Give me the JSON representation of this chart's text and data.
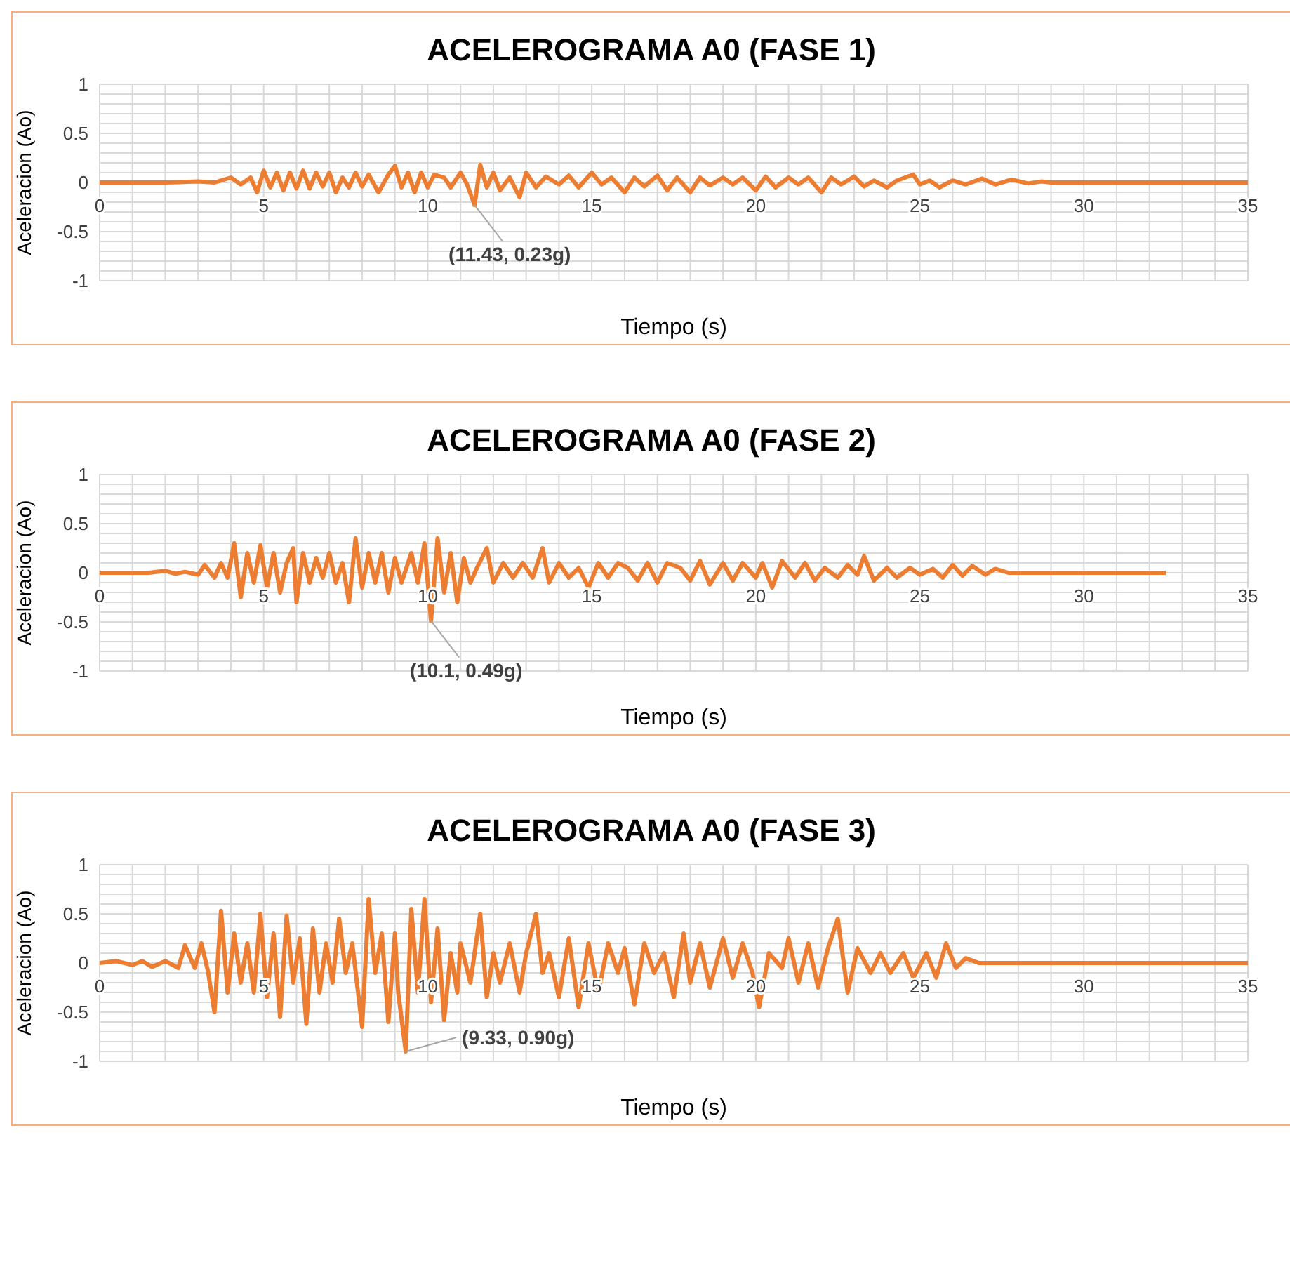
{
  "chart_data": [
    {
      "type": "line",
      "title": "ACELEROGRAMA A0 (FASE 1)",
      "xlabel": "Tiempo (s)",
      "ylabel": "Aceleracion (Ao)",
      "xlim": [
        0,
        35
      ],
      "ylim": [
        -1,
        1
      ],
      "xticks": [
        0,
        {
          "value": 1,
          "label": null
        },
        {
          "value": 2,
          "label": null
        },
        {
          "value": 3,
          "label": null
        },
        {
          "value": 4,
          "label": null
        },
        5,
        {
          "value": 6,
          "label": null
        },
        {
          "value": 7,
          "label": null
        },
        {
          "value": 8,
          "label": null
        },
        {
          "value": 9,
          "label": null
        },
        10,
        {
          "value": 11,
          "label": null
        },
        {
          "value": 12,
          "label": null
        },
        {
          "value": 13,
          "label": null
        },
        {
          "value": 14,
          "label": null
        },
        15,
        {
          "value": 16,
          "label": null
        },
        {
          "value": 17,
          "label": null
        },
        {
          "value": 18,
          "label": null
        },
        {
          "value": 19,
          "label": null
        },
        20,
        {
          "value": 21,
          "label": null
        },
        {
          "value": 22,
          "label": null
        },
        {
          "value": 23,
          "label": null
        },
        {
          "value": 24,
          "label": null
        },
        25,
        {
          "value": 26,
          "label": null
        },
        {
          "value": 27,
          "label": null
        },
        {
          "value": 28,
          "label": null
        },
        {
          "value": 29,
          "label": null
        },
        30,
        {
          "value": 31,
          "label": null
        },
        {
          "value": 32,
          "label": null
        },
        {
          "value": 33,
          "label": null
        },
        {
          "value": 34,
          "label": null
        },
        35
      ],
      "yticks": [
        -1,
        {
          "value": -0.9,
          "label": null
        },
        {
          "value": -0.8,
          "label": null
        },
        {
          "value": -0.7,
          "label": null
        },
        {
          "value": -0.6,
          "label": null
        },
        -0.5,
        {
          "value": -0.4,
          "label": null
        },
        {
          "value": -0.3,
          "label": null
        },
        {
          "value": -0.2,
          "label": null
        },
        {
          "value": -0.1,
          "label": null
        },
        0,
        {
          "value": 0.1,
          "label": null
        },
        {
          "value": 0.2,
          "label": null
        },
        {
          "value": 0.3,
          "label": null
        },
        {
          "value": 0.4,
          "label": null
        },
        0.5,
        {
          "value": 0.6,
          "label": null
        },
        {
          "value": 0.7,
          "label": null
        },
        {
          "value": 0.8,
          "label": null
        },
        {
          "value": 0.9,
          "label": null
        },
        1
      ],
      "grid": true,
      "marker": "none",
      "line_style": "solid",
      "series": [
        {
          "color": "#ed7d31",
          "x": [
            0,
            2,
            3,
            3.5,
            4,
            4.3,
            4.6,
            4.8,
            5,
            5.2,
            5.4,
            5.6,
            5.8,
            6,
            6.2,
            6.4,
            6.6,
            6.8,
            7,
            7.2,
            7.4,
            7.6,
            7.8,
            8,
            8.2,
            8.5,
            8.8,
            9,
            9.2,
            9.4,
            9.6,
            9.8,
            10,
            10.2,
            10.5,
            10.7,
            11,
            11.2,
            11.43,
            11.6,
            11.8,
            12,
            12.2,
            12.5,
            12.8,
            13,
            13.3,
            13.6,
            14,
            14.3,
            14.6,
            15,
            15.3,
            15.6,
            16,
            16.3,
            16.6,
            17,
            17.3,
            17.6,
            18,
            18.3,
            18.6,
            19,
            19.3,
            19.6,
            20,
            20.3,
            20.6,
            21,
            21.3,
            21.6,
            22,
            22.3,
            22.6,
            23,
            23.3,
            23.6,
            24,
            24.3,
            24.8,
            25,
            25.3,
            25.6,
            26,
            26.4,
            26.9,
            27.3,
            27.8,
            28.3,
            28.7,
            29,
            35
          ],
          "values": [
            0,
            0,
            0.01,
            0,
            0.05,
            -0.02,
            0.05,
            -0.1,
            0.12,
            -0.05,
            0.1,
            -0.08,
            0.1,
            -0.06,
            0.12,
            -0.06,
            0.1,
            -0.04,
            0.1,
            -0.1,
            0.05,
            -0.05,
            0.1,
            -0.04,
            0.08,
            -0.1,
            0.08,
            0.17,
            -0.05,
            0.1,
            -0.1,
            0.1,
            -0.05,
            0.08,
            0.05,
            -0.05,
            0.1,
            -0.02,
            -0.23,
            0.18,
            -0.05,
            0.1,
            -0.08,
            0.05,
            -0.15,
            0.1,
            -0.05,
            0.06,
            -0.02,
            0.07,
            -0.05,
            0.1,
            -0.02,
            0.05,
            -0.1,
            0.05,
            -0.04,
            0.07,
            -0.08,
            0.05,
            -0.1,
            0.05,
            -0.03,
            0.05,
            -0.02,
            0.05,
            -0.08,
            0.06,
            -0.05,
            0.05,
            -0.02,
            0.05,
            -0.1,
            0.05,
            -0.02,
            0.06,
            -0.04,
            0.02,
            -0.05,
            0.02,
            0.08,
            -0.02,
            0.02,
            -0.05,
            0.02,
            -0.02,
            0.04,
            -0.02,
            0.03,
            -0.01,
            0.01,
            0,
            0
          ]
        }
      ],
      "annotations": [
        {
          "text": "(11.43, 0.23g)",
          "x": 11.43,
          "y": -0.23
        }
      ]
    },
    {
      "type": "line",
      "title": "ACELEROGRAMA A0 (FASE 2)",
      "xlabel": "Tiempo (s)",
      "ylabel": "Aceleracion (Ao)",
      "xlim": [
        0,
        35
      ],
      "ylim": [
        -1,
        1
      ],
      "xticks": [
        0,
        {
          "value": 1,
          "label": null
        },
        {
          "value": 2,
          "label": null
        },
        {
          "value": 3,
          "label": null
        },
        {
          "value": 4,
          "label": null
        },
        5,
        {
          "value": 6,
          "label": null
        },
        {
          "value": 7,
          "label": null
        },
        {
          "value": 8,
          "label": null
        },
        {
          "value": 9,
          "label": null
        },
        10,
        {
          "value": 11,
          "label": null
        },
        {
          "value": 12,
          "label": null
        },
        {
          "value": 13,
          "label": null
        },
        {
          "value": 14,
          "label": null
        },
        15,
        {
          "value": 16,
          "label": null
        },
        {
          "value": 17,
          "label": null
        },
        {
          "value": 18,
          "label": null
        },
        {
          "value": 19,
          "label": null
        },
        20,
        {
          "value": 21,
          "label": null
        },
        {
          "value": 22,
          "label": null
        },
        {
          "value": 23,
          "label": null
        },
        {
          "value": 24,
          "label": null
        },
        25,
        {
          "value": 26,
          "label": null
        },
        {
          "value": 27,
          "label": null
        },
        {
          "value": 28,
          "label": null
        },
        {
          "value": 29,
          "label": null
        },
        30,
        {
          "value": 31,
          "label": null
        },
        {
          "value": 32,
          "label": null
        },
        {
          "value": 33,
          "label": null
        },
        {
          "value": 34,
          "label": null
        },
        35
      ],
      "yticks": [
        -1,
        {
          "value": -0.9,
          "label": null
        },
        {
          "value": -0.8,
          "label": null
        },
        {
          "value": -0.7,
          "label": null
        },
        {
          "value": -0.6,
          "label": null
        },
        -0.5,
        {
          "value": -0.4,
          "label": null
        },
        {
          "value": -0.3,
          "label": null
        },
        {
          "value": -0.2,
          "label": null
        },
        {
          "value": -0.1,
          "label": null
        },
        0,
        {
          "value": 0.1,
          "label": null
        },
        {
          "value": 0.2,
          "label": null
        },
        {
          "value": 0.3,
          "label": null
        },
        {
          "value": 0.4,
          "label": null
        },
        0.5,
        {
          "value": 0.6,
          "label": null
        },
        {
          "value": 0.7,
          "label": null
        },
        {
          "value": 0.8,
          "label": null
        },
        {
          "value": 0.9,
          "label": null
        },
        1
      ],
      "grid": true,
      "marker": "none",
      "line_style": "solid",
      "series": [
        {
          "color": "#ed7d31",
          "x": [
            0,
            1.5,
            2,
            2.3,
            2.6,
            3,
            3.2,
            3.5,
            3.7,
            3.9,
            4.1,
            4.3,
            4.5,
            4.7,
            4.9,
            5.1,
            5.3,
            5.5,
            5.7,
            5.9,
            6,
            6.2,
            6.4,
            6.6,
            6.8,
            7,
            7.2,
            7.4,
            7.6,
            7.8,
            8,
            8.2,
            8.4,
            8.6,
            8.8,
            9,
            9.2,
            9.5,
            9.7,
            9.9,
            10.1,
            10.3,
            10.5,
            10.7,
            10.9,
            11.1,
            11.3,
            11.5,
            11.8,
            12,
            12.3,
            12.6,
            12.9,
            13.2,
            13.5,
            13.7,
            14,
            14.3,
            14.6,
            14.9,
            15.2,
            15.5,
            15.8,
            16.1,
            16.4,
            16.7,
            17,
            17.3,
            17.7,
            18,
            18.3,
            18.6,
            19,
            19.3,
            19.6,
            20,
            20.2,
            20.5,
            20.8,
            21.2,
            21.5,
            21.8,
            22.1,
            22.5,
            22.8,
            23.1,
            23.3,
            23.6,
            24,
            24.3,
            24.7,
            25,
            25.4,
            25.7,
            26,
            26.3,
            26.6,
            27,
            27.3,
            27.7,
            32.5
          ],
          "values": [
            0,
            0,
            0.02,
            -0.01,
            0.01,
            -0.02,
            0.08,
            -0.05,
            0.1,
            -0.05,
            0.3,
            -0.25,
            0.2,
            -0.1,
            0.28,
            -0.15,
            0.2,
            -0.2,
            0.1,
            0.25,
            -0.3,
            0.2,
            -0.1,
            0.15,
            -0.05,
            0.2,
            -0.1,
            0.1,
            -0.3,
            0.35,
            -0.15,
            0.2,
            -0.1,
            0.2,
            -0.2,
            0.15,
            -0.1,
            0.2,
            -0.1,
            0.3,
            -0.49,
            0.35,
            -0.2,
            0.2,
            -0.3,
            0.15,
            -0.1,
            0.05,
            0.25,
            -0.1,
            0.1,
            -0.05,
            0.1,
            -0.05,
            0.25,
            -0.1,
            0.1,
            -0.05,
            0.05,
            -0.15,
            0.1,
            -0.05,
            0.1,
            0.05,
            -0.08,
            0.1,
            -0.1,
            0.1,
            0.05,
            -0.08,
            0.12,
            -0.12,
            0.1,
            -0.08,
            0.1,
            -0.05,
            0.1,
            -0.15,
            0.12,
            -0.05,
            0.1,
            -0.08,
            0.05,
            -0.05,
            0.08,
            -0.02,
            0.17,
            -0.08,
            0.05,
            -0.05,
            0.05,
            -0.02,
            0.04,
            -0.05,
            0.08,
            -0.03,
            0.07,
            -0.02,
            0.04,
            0,
            0
          ]
        }
      ],
      "annotations": [
        {
          "text": "(10.1, 0.49g)",
          "x": 10.1,
          "y": -0.49
        }
      ]
    },
    {
      "type": "line",
      "title": "ACELEROGRAMA A0 (FASE 3)",
      "xlabel": "Tiempo (s)",
      "ylabel": "Aceleracion (Ao)",
      "xlim": [
        0,
        35
      ],
      "ylim": [
        -1,
        1
      ],
      "xticks": [
        0,
        {
          "value": 1,
          "label": null
        },
        {
          "value": 2,
          "label": null
        },
        {
          "value": 3,
          "label": null
        },
        {
          "value": 4,
          "label": null
        },
        5,
        {
          "value": 6,
          "label": null
        },
        {
          "value": 7,
          "label": null
        },
        {
          "value": 8,
          "label": null
        },
        {
          "value": 9,
          "label": null
        },
        10,
        {
          "value": 11,
          "label": null
        },
        {
          "value": 12,
          "label": null
        },
        {
          "value": 13,
          "label": null
        },
        {
          "value": 14,
          "label": null
        },
        15,
        {
          "value": 16,
          "label": null
        },
        {
          "value": 17,
          "label": null
        },
        {
          "value": 18,
          "label": null
        },
        {
          "value": 19,
          "label": null
        },
        20,
        {
          "value": 21,
          "label": null
        },
        {
          "value": 22,
          "label": null
        },
        {
          "value": 23,
          "label": null
        },
        {
          "value": 24,
          "label": null
        },
        25,
        {
          "value": 26,
          "label": null
        },
        {
          "value": 27,
          "label": null
        },
        {
          "value": 28,
          "label": null
        },
        {
          "value": 29,
          "label": null
        },
        30,
        {
          "value": 31,
          "label": null
        },
        {
          "value": 32,
          "label": null
        },
        {
          "value": 33,
          "label": null
        },
        {
          "value": 34,
          "label": null
        },
        35
      ],
      "yticks": [
        -1,
        {
          "value": -0.9,
          "label": null
        },
        {
          "value": -0.8,
          "label": null
        },
        {
          "value": -0.7,
          "label": null
        },
        {
          "value": -0.6,
          "label": null
        },
        -0.5,
        {
          "value": -0.4,
          "label": null
        },
        {
          "value": -0.3,
          "label": null
        },
        {
          "value": -0.2,
          "label": null
        },
        {
          "value": -0.1,
          "label": null
        },
        0,
        {
          "value": 0.1,
          "label": null
        },
        {
          "value": 0.2,
          "label": null
        },
        {
          "value": 0.3,
          "label": null
        },
        {
          "value": 0.4,
          "label": null
        },
        0.5,
        {
          "value": 0.6,
          "label": null
        },
        {
          "value": 0.7,
          "label": null
        },
        {
          "value": 0.8,
          "label": null
        },
        {
          "value": 0.9,
          "label": null
        },
        1
      ],
      "grid": true,
      "marker": "none",
      "line_style": "solid",
      "series": [
        {
          "color": "#ed7d31",
          "x": [
            0,
            0.5,
            1,
            1.3,
            1.6,
            2,
            2.4,
            2.6,
            2.9,
            3.1,
            3.3,
            3.5,
            3.7,
            3.9,
            4.1,
            4.3,
            4.5,
            4.7,
            4.9,
            5.1,
            5.3,
            5.5,
            5.7,
            5.9,
            6.1,
            6.3,
            6.5,
            6.7,
            6.9,
            7.1,
            7.3,
            7.5,
            7.7,
            8,
            8.2,
            8.4,
            8.6,
            8.8,
            9,
            9.1,
            9.33,
            9.5,
            9.7,
            9.9,
            10.1,
            10.3,
            10.5,
            10.7,
            10.9,
            11,
            11.3,
            11.6,
            11.8,
            12,
            12.2,
            12.5,
            12.8,
            13,
            13.3,
            13.5,
            13.7,
            14,
            14.3,
            14.6,
            14.9,
            15.2,
            15.5,
            15.8,
            16,
            16.3,
            16.6,
            16.9,
            17.2,
            17.5,
            17.8,
            18,
            18.3,
            18.6,
            19,
            19.3,
            19.6,
            19.9,
            20.1,
            20.4,
            20.8,
            21,
            21.3,
            21.6,
            21.9,
            22.2,
            22.5,
            22.8,
            23.1,
            23.5,
            23.8,
            24.1,
            24.5,
            24.8,
            25.2,
            25.5,
            25.8,
            26.1,
            26.4,
            26.8,
            35
          ],
          "values": [
            0,
            0.02,
            -0.02,
            0.02,
            -0.04,
            0.02,
            -0.05,
            0.18,
            -0.05,
            0.2,
            -0.08,
            -0.5,
            0.53,
            -0.3,
            0.3,
            -0.2,
            0.2,
            -0.3,
            0.5,
            -0.35,
            0.3,
            -0.55,
            0.48,
            -0.2,
            0.25,
            -0.62,
            0.35,
            -0.3,
            0.2,
            -0.2,
            0.45,
            -0.1,
            0.2,
            -0.65,
            0.65,
            -0.1,
            0.3,
            -0.6,
            0.3,
            -0.3,
            -0.9,
            0.55,
            -0.3,
            0.65,
            -0.4,
            0.35,
            -0.58,
            0.1,
            -0.3,
            0.2,
            -0.2,
            0.5,
            -0.35,
            0.1,
            -0.2,
            0.2,
            -0.3,
            0.1,
            0.5,
            -0.1,
            0.1,
            -0.35,
            0.25,
            -0.45,
            0.2,
            -0.3,
            0.2,
            -0.1,
            0.15,
            -0.42,
            0.2,
            -0.1,
            0.1,
            -0.35,
            0.3,
            -0.2,
            0.2,
            -0.25,
            0.25,
            -0.15,
            0.2,
            -0.1,
            -0.45,
            0.1,
            -0.05,
            0.25,
            -0.2,
            0.2,
            -0.25,
            0.15,
            0.45,
            -0.3,
            0.15,
            -0.1,
            0.1,
            -0.1,
            0.1,
            -0.15,
            0.1,
            -0.15,
            0.2,
            -0.05,
            0.05,
            0,
            0
          ]
        }
      ],
      "annotations": [
        {
          "text": "(9.33, 0.90g)",
          "x": 9.33,
          "y": -0.9
        }
      ]
    }
  ]
}
